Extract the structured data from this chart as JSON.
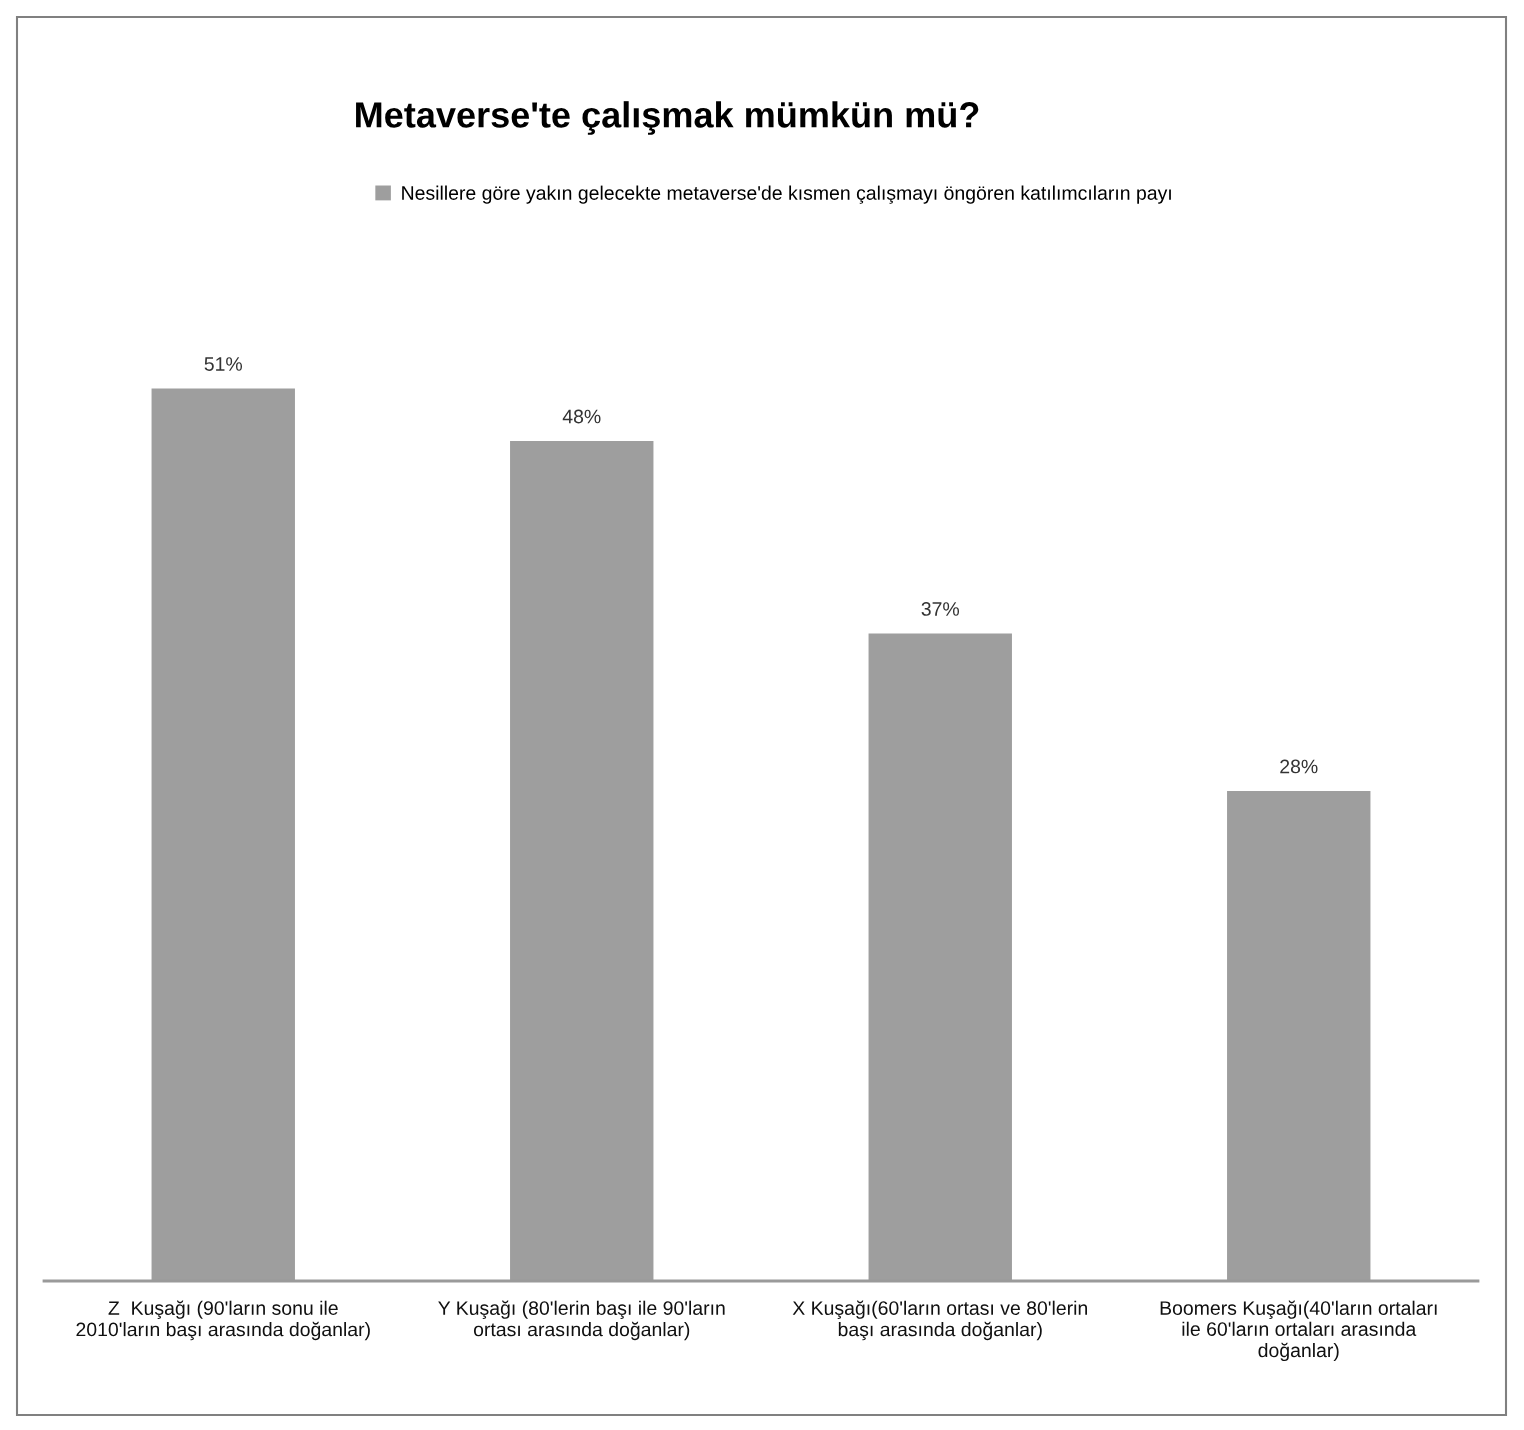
{
  "chart_data": {
    "type": "bar",
    "title": "Metaverse'te çalışmak mümkün mü?",
    "categories": [
      "Z  Kuşağı (90'ların sonu ile\n2010'ların başı arasında doğanlar)",
      "Y Kuşağı (80'lerin başı ile 90'ların\nortası arasında doğanlar)",
      "X Kuşağı(60'ların ortası ve 80'lerin\nbaşı arasında doğanlar)",
      "Boomers Kuşağı(40'ların ortaları\nile 60'ların ortaları arasında\ndoğanlar)"
    ],
    "series": [
      {
        "name": "Nesillere göre yakın gelecekte metaverse'de kısmen çalışmayı öngören katılımcıların payı",
        "color": "#9e9e9e",
        "values": [
          51,
          48,
          37,
          28
        ],
        "value_labels": [
          "51%",
          "48%",
          "37%",
          "28%"
        ]
      }
    ],
    "legend": "top",
    "grid": false
  }
}
